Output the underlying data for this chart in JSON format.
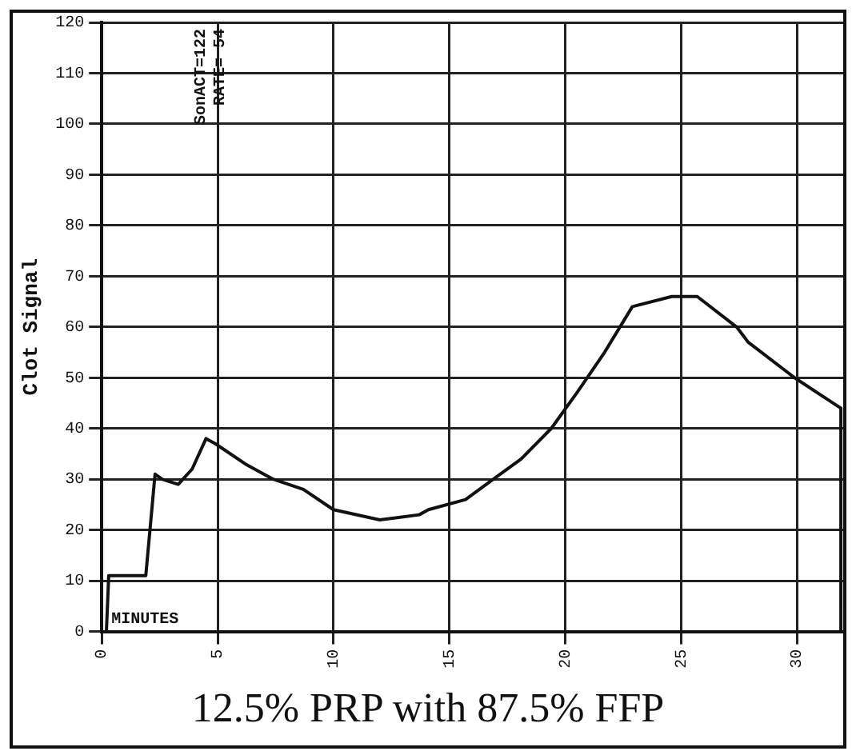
{
  "chart_data": {
    "type": "line",
    "title": "12.5% PRP with 87.5% FFP",
    "xlabel": "MINUTES",
    "ylabel": "Clot Signal",
    "annotations": [
      "SonACT=122",
      "RATE= 54"
    ],
    "x": [
      0.2,
      0.3,
      1.9,
      2.3,
      2.6,
      3.3,
      3.9,
      4.5,
      4.9,
      6.2,
      7.4,
      8.7,
      10,
      12,
      13.7,
      14.1,
      15.7,
      16.9,
      18.1,
      19.4,
      20.5,
      21.7,
      22.9,
      24.6,
      25.7,
      27.4,
      27.9,
      29.9,
      30.9,
      31.9,
      31.9
    ],
    "series": [
      {
        "color": "#111111",
        "values": [
          0,
          11,
          11,
          31,
          30,
          29,
          32,
          38,
          37,
          33,
          30,
          28,
          24,
          22,
          23,
          24,
          26,
          30,
          34,
          40,
          47,
          55,
          64,
          66,
          66,
          60,
          57,
          50,
          47,
          44,
          0
        ]
      }
    ],
    "xlim": [
      0,
      32
    ],
    "xticks": [
      0,
      5,
      10,
      15,
      20,
      25,
      30
    ],
    "ylim": [
      0,
      120
    ],
    "yticks": [
      0,
      10,
      20,
      30,
      40,
      50,
      60,
      70,
      80,
      90,
      100,
      110,
      120
    ],
    "grid": true,
    "legend": false,
    "marker": "none",
    "line_style": "solid"
  }
}
